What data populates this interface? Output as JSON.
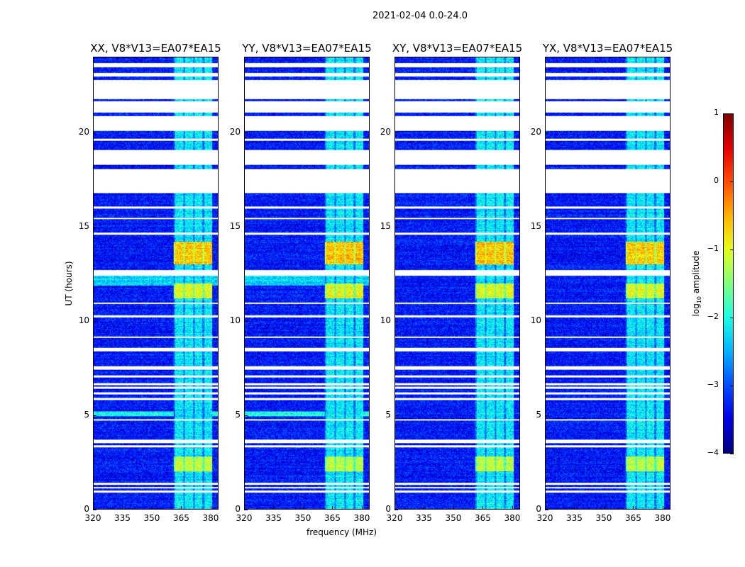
{
  "chart_data": {
    "type": "heatmap",
    "title": "2021-02-04 0.0-24.0",
    "xlabel": "frequency (MHz)",
    "ylabel": "UT (hours)",
    "xlim": [
      320,
      384
    ],
    "ylim": [
      0,
      24
    ],
    "xticks": [
      "320",
      "335",
      "350",
      "365",
      "380"
    ],
    "xtick_values": [
      320,
      335,
      350,
      365,
      380
    ],
    "yticks": [
      "0",
      "5",
      "10",
      "15",
      "20"
    ],
    "ytick_values": [
      0,
      5,
      10,
      15,
      20
    ],
    "panels": [
      {
        "title": "XX, V8*V13=EA07*EA15",
        "pol": "XX"
      },
      {
        "title": "YY, V8*V13=EA07*EA15",
        "pol": "YY"
      },
      {
        "title": "XY, V8*V13=EA07*EA15",
        "pol": "XY"
      },
      {
        "title": "YX, V8*V13=EA07*EA15",
        "pol": "YX"
      }
    ],
    "colorbar": {
      "label": "log",
      "label_sub": "10",
      "label_rest": " amplitude",
      "colormap": "jet",
      "range": [
        -4,
        1
      ],
      "ticks": [
        "1",
        "0",
        "−1",
        "−2",
        "−3",
        "−4"
      ],
      "tick_values": [
        1,
        0,
        -1,
        -2,
        -3,
        -4
      ]
    },
    "rfi_band_mhz": [
      361,
      381
    ],
    "flagged_hours": [
      [
        0.9,
        1.0
      ],
      [
        1.1,
        1.2
      ],
      [
        1.3,
        1.4
      ],
      [
        3.3,
        3.4
      ],
      [
        3.5,
        3.7
      ],
      [
        4.7,
        4.8
      ],
      [
        5.8,
        5.9
      ],
      [
        6.1,
        6.2
      ],
      [
        6.4,
        6.5
      ],
      [
        6.6,
        6.7
      ],
      [
        7.0,
        7.1
      ],
      [
        7.4,
        7.6
      ],
      [
        8.4,
        8.6
      ],
      [
        9.1,
        9.2
      ],
      [
        10.2,
        10.3
      ],
      [
        10.9,
        11.0
      ],
      [
        12.4,
        12.7
      ],
      [
        14.6,
        14.7
      ],
      [
        15.4,
        15.5
      ],
      [
        16.0,
        16.1
      ],
      [
        16.8,
        18.1
      ],
      [
        18.3,
        19.1
      ],
      [
        19.6,
        19.7
      ],
      [
        20.1,
        20.9
      ],
      [
        21.1,
        21.7
      ],
      [
        21.8,
        22.8
      ],
      [
        23.0,
        23.2
      ],
      [
        23.5,
        23.7
      ]
    ],
    "levels": {
      "base": -3.3,
      "band": -2.2,
      "segments": [
        {
          "from": 2.0,
          "to": 2.8,
          "band": -1.2
        },
        {
          "from": 13.0,
          "to": 14.2,
          "band": -0.6
        },
        {
          "from": 11.2,
          "to": 12.0,
          "band": -1.0
        }
      ],
      "parallel_hand_extra": [
        {
          "from": 11.9,
          "to": 12.4,
          "base": -2.3
        },
        {
          "from": 4.95,
          "to": 5.2,
          "base": -2.0
        }
      ]
    }
  }
}
